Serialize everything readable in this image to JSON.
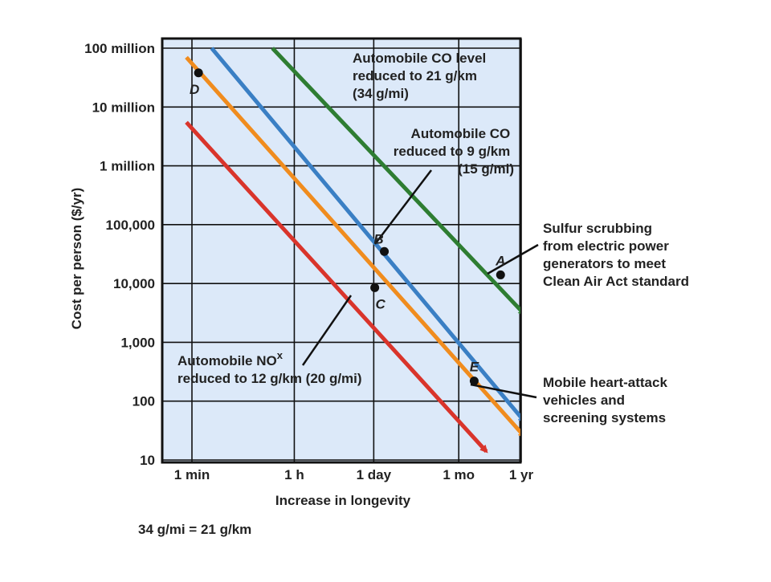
{
  "chart_data": {
    "type": "line",
    "x_axis": {
      "label": "Increase in longevity",
      "scale": "log",
      "ticks": [
        {
          "label": "1 min",
          "value": 1
        },
        {
          "label": "1 h",
          "value": 60
        },
        {
          "label": "1 day",
          "value": 1440
        },
        {
          "label": "1 mo",
          "value": 43200
        },
        {
          "label": "1 yr",
          "value": 525600
        }
      ],
      "unit": "minutes"
    },
    "y_axis": {
      "label": "Cost per person ($/yr)",
      "scale": "log",
      "range": [
        10,
        100000000
      ],
      "ticks": [
        {
          "label": "100 million",
          "value": 100000000
        },
        {
          "label": "10 million",
          "value": 10000000
        },
        {
          "label": "1 million",
          "value": 1000000
        },
        {
          "label": "100,000",
          "value": 100000
        },
        {
          "label": "10,000",
          "value": 10000
        },
        {
          "label": "1,000",
          "value": 1000
        },
        {
          "label": "100",
          "value": 100
        },
        {
          "label": "10",
          "value": 10
        }
      ]
    },
    "grid": true,
    "series": [
      {
        "color": "#2e7d32",
        "points": [
          [
            25,
            100000000
          ],
          [
            600000,
            3000
          ]
        ]
      },
      {
        "color": "#3a7fc4",
        "points": [
          [
            2.2,
            100000000
          ],
          [
            600000,
            45
          ]
        ]
      },
      {
        "color": "#f08c1e",
        "points": [
          [
            0.8,
            70000000
          ],
          [
            600000,
            25
          ]
        ]
      },
      {
        "color": "#d9342b",
        "points": [
          [
            0.8,
            5500000
          ],
          [
            130000,
            14
          ]
        ]
      }
    ],
    "points": [
      {
        "label": "A",
        "x": 230000,
        "y": 14000,
        "label_pos": "above"
      },
      {
        "label": "B",
        "x": 2200,
        "y": 35000,
        "label_pos": "above-left"
      },
      {
        "label": "C",
        "x": 1500,
        "y": 8500,
        "label_pos": "below"
      },
      {
        "label": "D",
        "x": 1.3,
        "y": 38000000,
        "label_pos": "below-left"
      },
      {
        "label": "E",
        "x": 80000,
        "y": 220,
        "label_pos": "above"
      }
    ],
    "annotations": [
      {
        "lines": [
          "Automobile CO level",
          "reduced to 21 g/km",
          "(34 g/mi)"
        ]
      },
      {
        "lines": [
          "Automobile CO",
          "reduced to 9 g/km",
          "(15 g/mi)"
        ]
      },
      {
        "lines": [
          "Sulfur scrubbing",
          "from electric power",
          "generators to meet",
          "Clean Air Act standard"
        ]
      },
      {
        "lines": [
          "Automobile NO",
          "reduced to 12 g/km (20 g/mi)"
        ],
        "superscript": "x"
      },
      {
        "lines": [
          "Mobile heart-attack",
          "vehicles and",
          "screening systems"
        ]
      }
    ],
    "background": "#dce9f9"
  },
  "footnote": "34 g/mi = 21 g/km"
}
